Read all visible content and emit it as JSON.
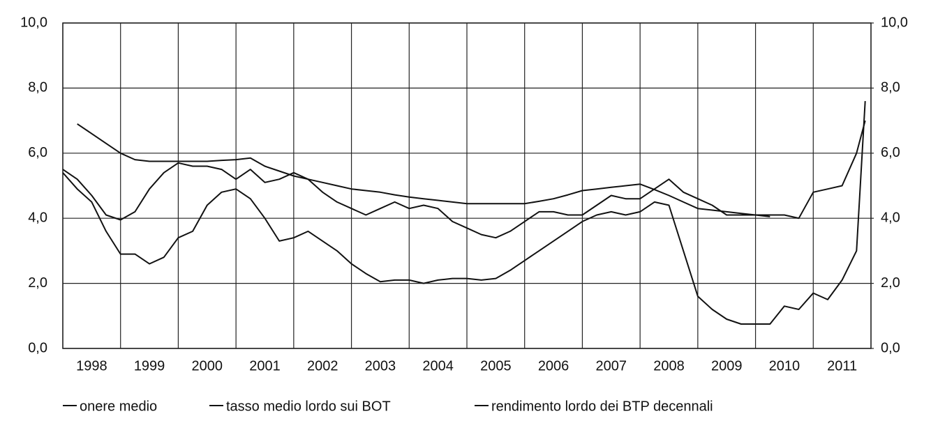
{
  "chart_data": {
    "type": "line",
    "x": [
      1998.0,
      1998.25,
      1998.5,
      1998.75,
      1999.0,
      1999.25,
      1999.5,
      1999.75,
      2000.0,
      2000.25,
      2000.5,
      2000.75,
      2001.0,
      2001.25,
      2001.5,
      2001.75,
      2002.0,
      2002.25,
      2002.5,
      2002.75,
      2003.0,
      2003.25,
      2003.5,
      2003.75,
      2004.0,
      2004.25,
      2004.5,
      2004.75,
      2005.0,
      2005.25,
      2005.5,
      2005.75,
      2006.0,
      2006.25,
      2006.5,
      2006.75,
      2007.0,
      2007.25,
      2007.5,
      2007.75,
      2008.0,
      2008.25,
      2008.5,
      2008.75,
      2009.0,
      2009.25,
      2009.5,
      2009.75,
      2010.0,
      2010.25,
      2010.5,
      2010.75,
      2011.0,
      2011.25,
      2011.5,
      2011.75,
      2011.9
    ],
    "series": [
      {
        "name": "onere medio",
        "color": "#111111",
        "values": [
          null,
          6.9,
          6.6,
          6.3,
          6.0,
          5.8,
          5.75,
          5.75,
          5.75,
          5.75,
          5.75,
          5.78,
          5.8,
          5.85,
          5.6,
          5.45,
          5.3,
          5.2,
          5.1,
          5.0,
          4.9,
          4.85,
          4.8,
          4.72,
          4.65,
          4.6,
          4.55,
          4.5,
          4.45,
          4.45,
          4.45,
          4.45,
          4.45,
          4.52,
          4.6,
          4.72,
          4.85,
          4.9,
          4.95,
          5.0,
          5.05,
          4.88,
          4.7,
          4.5,
          4.3,
          4.25,
          4.2,
          4.15,
          4.1,
          4.05,
          null,
          null,
          null,
          null,
          null,
          null,
          null
        ]
      },
      {
        "name": "tasso medio lordo sui BOT",
        "color": "#111111",
        "values": [
          5.4,
          4.9,
          4.5,
          3.6,
          2.9,
          2.9,
          2.6,
          2.8,
          3.4,
          3.6,
          4.4,
          4.8,
          4.9,
          4.6,
          4.0,
          3.3,
          3.4,
          3.6,
          3.3,
          3.0,
          2.6,
          2.3,
          2.05,
          2.1,
          2.1,
          2.0,
          2.1,
          2.15,
          2.15,
          2.1,
          2.15,
          2.4,
          2.7,
          3.0,
          3.3,
          3.6,
          3.9,
          4.1,
          4.2,
          4.1,
          4.2,
          4.5,
          4.4,
          3.0,
          1.6,
          1.2,
          0.9,
          0.75,
          0.75,
          0.75,
          1.3,
          1.2,
          1.7,
          1.5,
          2.1,
          3.0,
          7.6
        ]
      },
      {
        "name": "rendimento lordo dei BTP decennali",
        "color": "#111111",
        "values": [
          5.5,
          5.2,
          4.7,
          4.1,
          3.95,
          4.2,
          4.9,
          5.4,
          5.7,
          5.6,
          5.6,
          5.5,
          5.2,
          5.5,
          5.1,
          5.2,
          5.4,
          5.2,
          4.8,
          4.5,
          4.3,
          4.1,
          4.3,
          4.5,
          4.3,
          4.4,
          4.3,
          3.9,
          3.7,
          3.5,
          3.4,
          3.6,
          3.9,
          4.2,
          4.2,
          4.1,
          4.1,
          4.4,
          4.7,
          4.6,
          4.6,
          4.9,
          5.2,
          4.8,
          4.6,
          4.4,
          4.1,
          4.1,
          4.1,
          4.1,
          4.1,
          4.0,
          4.8,
          4.9,
          5.0,
          6.0,
          7.0
        ]
      }
    ],
    "xlim": [
      1998,
      2012
    ],
    "xticks": [
      1998,
      1999,
      2000,
      2001,
      2002,
      2003,
      2004,
      2005,
      2006,
      2007,
      2008,
      2009,
      2010,
      2011
    ],
    "ylim": [
      0,
      10
    ],
    "yticks": [
      {
        "value": 0,
        "label": "0,0"
      },
      {
        "value": 2,
        "label": "2,0"
      },
      {
        "value": 4,
        "label": "4,0"
      },
      {
        "value": 6,
        "label": "6,0"
      },
      {
        "value": 8,
        "label": "8,0"
      },
      {
        "value": 10,
        "label": "10,0"
      }
    ],
    "y2lim": [
      0,
      10
    ],
    "y2ticks": [
      {
        "value": 0,
        "label": "0,0"
      },
      {
        "value": 2,
        "label": "2,0"
      },
      {
        "value": 4,
        "label": "4,0"
      },
      {
        "value": 6,
        "label": "6,0"
      },
      {
        "value": 8,
        "label": "8,0"
      },
      {
        "value": 10,
        "label": "10,0"
      }
    ],
    "grid": true,
    "legend": "bottom"
  }
}
